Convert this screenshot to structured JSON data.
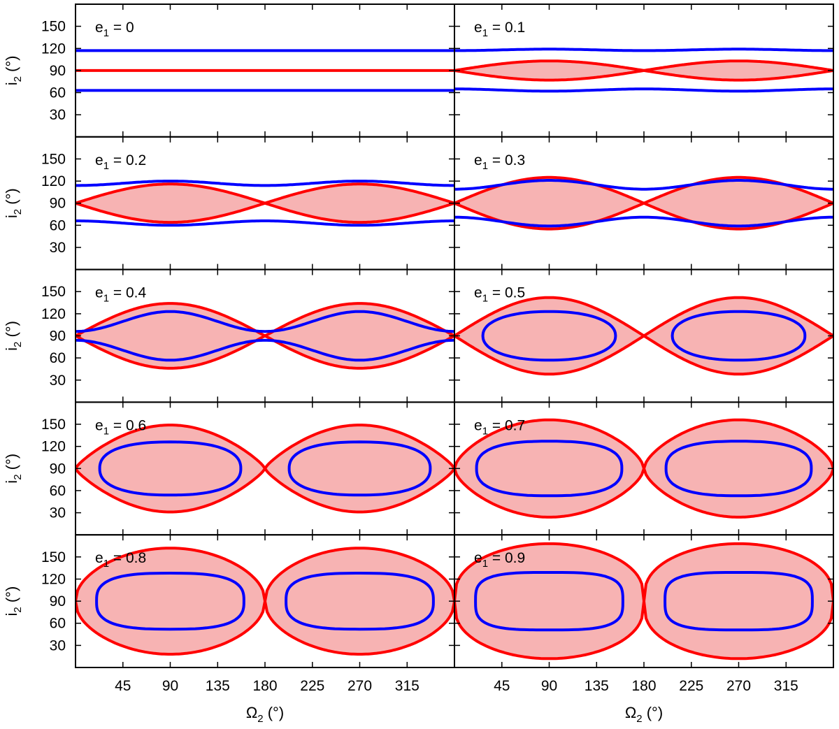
{
  "chart_data": {
    "type": "line",
    "layout": "5x2 grid of panels",
    "xlabel": "Ω",
    "xlabel_sub": "2",
    "xlabel_unit": " (°)",
    "ylabel": "i",
    "ylabel_sub": "2",
    "ylabel_unit": " (°)",
    "xlim": [
      0,
      360
    ],
    "ylim": [
      0,
      180
    ],
    "x_ticks": [
      45,
      90,
      135,
      180,
      225,
      270,
      315
    ],
    "y_ticks": [
      30,
      60,
      90,
      120,
      150
    ],
    "colors": {
      "red": "#ff0000",
      "blue": "#0000ff",
      "fill": "#f7b3b3"
    },
    "series_names": [
      "red boundary (shaded region)",
      "blue curve"
    ],
    "panels": [
      {
        "e_sym": "e",
        "e_sub": "1",
        "label_rest": " = 0",
        "e1": 0,
        "red": {
          "shape": "line",
          "y": 90
        },
        "blue": {
          "shape": "wavy",
          "upper": [
            117,
            117
          ],
          "lower": [
            63,
            63
          ]
        }
      },
      {
        "e_sym": "e",
        "e_sub": "1",
        "label_rest": " = 0.1",
        "e1": 0.1,
        "red": {
          "shape": "lens",
          "max_i": 103,
          "min_i": 77
        },
        "blue": {
          "shape": "wavy",
          "upper": [
            117,
            119
          ],
          "lower": [
            65,
            62
          ]
        }
      },
      {
        "e_sym": "e",
        "e_sub": "1",
        "label_rest": " = 0.2",
        "e1": 0.2,
        "red": {
          "shape": "lens",
          "max_i": 116,
          "min_i": 64
        },
        "blue": {
          "shape": "wavy",
          "upper": [
            114,
            120
          ],
          "lower": [
            66,
            60
          ]
        }
      },
      {
        "e_sym": "e",
        "e_sub": "1",
        "label_rest": " = 0.3",
        "e1": 0.3,
        "red": {
          "shape": "lens",
          "max_i": 125,
          "min_i": 55
        },
        "blue": {
          "shape": "wavy",
          "upper": [
            109,
            121
          ],
          "lower": [
            71,
            59
          ]
        }
      },
      {
        "e_sym": "e",
        "e_sub": "1",
        "label_rest": " = 0.4",
        "e1": 0.4,
        "red": {
          "shape": "lens",
          "max_i": 134,
          "min_i": 46
        },
        "blue": {
          "shape": "wavy",
          "upper": [
            96,
            123
          ],
          "lower": [
            84,
            57
          ]
        }
      },
      {
        "e_sym": "e",
        "e_sub": "1",
        "label_rest": " = 0.5",
        "e1": 0.5,
        "red": {
          "shape": "lobes",
          "max_i": 142,
          "min_i": 38,
          "p": 1.0
        },
        "blue": {
          "shape": "ellipses",
          "center_i": 90,
          "half_height": 33,
          "half_width": 63,
          "n": 2.2
        }
      },
      {
        "e_sym": "e",
        "e_sub": "1",
        "label_rest": " = 0.6",
        "e1": 0.6,
        "red": {
          "shape": "lobes",
          "max_i": 149,
          "min_i": 31,
          "p": 0.8
        },
        "blue": {
          "shape": "ellipses",
          "center_i": 90,
          "half_height": 36,
          "half_width": 67,
          "n": 2.4
        }
      },
      {
        "e_sym": "e",
        "e_sub": "1",
        "label_rest": " = 0.7",
        "e1": 0.7,
        "red": {
          "shape": "lobes",
          "max_i": 156,
          "min_i": 24,
          "p": 0.62
        },
        "blue": {
          "shape": "ellipses",
          "center_i": 90,
          "half_height": 37,
          "half_width": 69,
          "n": 2.6
        }
      },
      {
        "e_sym": "e",
        "e_sub": "1",
        "label_rest": " = 0.8",
        "e1": 0.8,
        "red": {
          "shape": "lobes",
          "max_i": 162,
          "min_i": 18,
          "p": 0.48
        },
        "blue": {
          "shape": "ellipses",
          "center_i": 90,
          "half_height": 38,
          "half_width": 70,
          "n": 2.9
        }
      },
      {
        "e_sym": "e",
        "e_sub": "1",
        "label_rest": " = 0.9",
        "e1": 0.9,
        "red": {
          "shape": "lobes",
          "max_i": 168,
          "min_i": 12,
          "p": 0.36
        },
        "blue": {
          "shape": "ellipses",
          "center_i": 90,
          "half_height": 39,
          "half_width": 70,
          "n": 3.4
        }
      }
    ]
  }
}
